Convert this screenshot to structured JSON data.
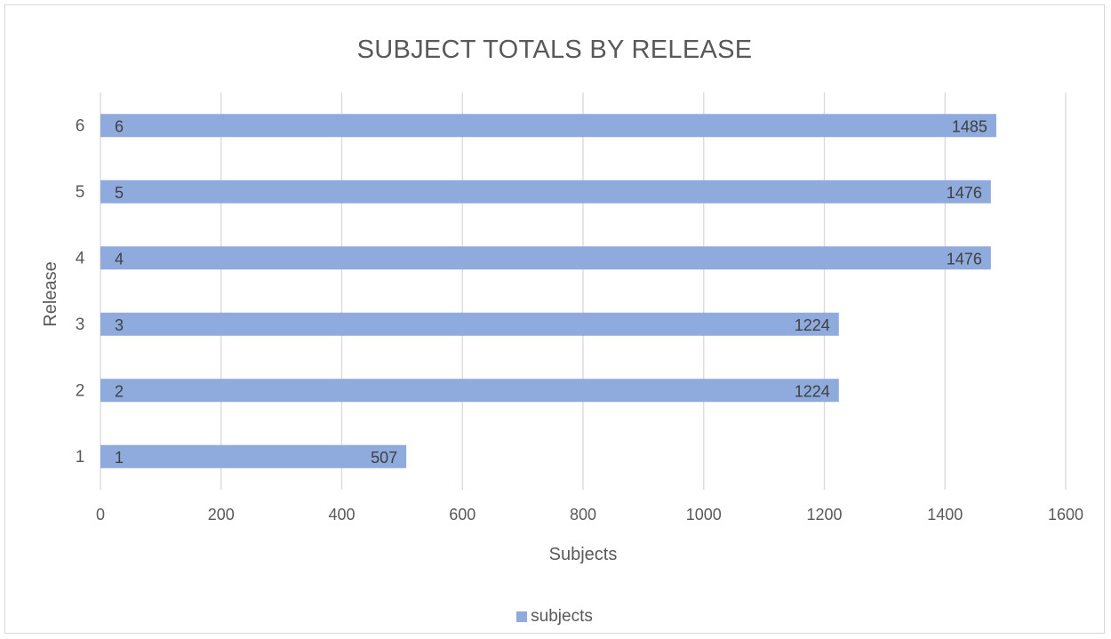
{
  "chart_data": {
    "type": "bar",
    "orientation": "horizontal",
    "title": "SUBJECT TOTALS BY RELEASE",
    "xlabel": "Subjects",
    "ylabel": "Release",
    "categories": [
      "1",
      "2",
      "3",
      "4",
      "5",
      "6"
    ],
    "series": [
      {
        "name": "subjects",
        "values": [
          507,
          1224,
          1224,
          1476,
          1476,
          1485
        ],
        "color": "#8faadc"
      }
    ],
    "xlim": [
      0,
      1600
    ],
    "x_ticks": [
      "0",
      "200",
      "400",
      "600",
      "800",
      "1000",
      "1200",
      "1400",
      "1600"
    ],
    "grid": "vertical",
    "legend": "bottom",
    "data_labels": true,
    "category_labels_inside_bars": true
  }
}
